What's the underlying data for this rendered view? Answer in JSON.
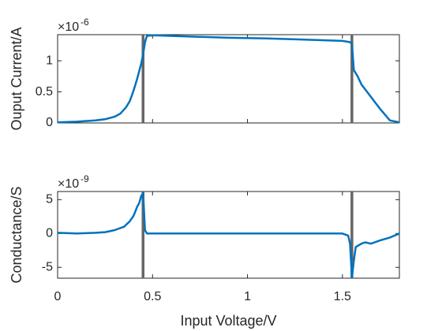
{
  "chart_data": [
    {
      "type": "line",
      "ylabel": "Ouput Current/A",
      "y_multiplier": {
        "base": "×10",
        "exponent": "-6"
      },
      "x": [
        0,
        0.1,
        0.2,
        0.25,
        0.3,
        0.33,
        0.36,
        0.38,
        0.4,
        0.42,
        0.44,
        0.45,
        0.46,
        0.47,
        0.5,
        0.7,
        0.9,
        1.1,
        1.3,
        1.5,
        1.54,
        1.55,
        1.56,
        1.58,
        1.6,
        1.65,
        1.7,
        1.75,
        1.8
      ],
      "values": [
        0.01,
        0.02,
        0.04,
        0.06,
        0.1,
        0.15,
        0.25,
        0.35,
        0.52,
        0.72,
        0.95,
        1.1,
        1.3,
        1.4,
        1.41,
        1.39,
        1.37,
        1.36,
        1.34,
        1.32,
        1.3,
        1.27,
        0.85,
        0.75,
        0.62,
        0.42,
        0.22,
        0.04,
        0.01
      ],
      "color": "#0072bd",
      "vlines": [
        0.45,
        1.55
      ],
      "vline_color": "#666666",
      "xlim": [
        0,
        1.8
      ],
      "xticks": [
        0,
        0.5,
        1,
        1.5
      ],
      "xticklabels": false,
      "ylim": [
        0,
        1.42
      ],
      "yticks": [
        0,
        0.5,
        1
      ]
    },
    {
      "type": "line",
      "ylabel": "Conductance/S",
      "xlabel": "Input Voltage/V",
      "y_multiplier": {
        "base": "×10",
        "exponent": "-9"
      },
      "x": [
        0,
        0.1,
        0.2,
        0.25,
        0.3,
        0.35,
        0.38,
        0.4,
        0.42,
        0.43,
        0.44,
        0.45,
        0.46,
        0.47,
        0.5,
        1.0,
        1.5,
        1.53,
        1.54,
        1.55,
        1.56,
        1.57,
        1.6,
        1.62,
        1.65,
        1.7,
        1.75,
        1.8
      ],
      "values": [
        0.1,
        0,
        0.1,
        0.2,
        0.5,
        1.0,
        1.8,
        2.6,
        4.0,
        4.5,
        5.5,
        6.0,
        0.5,
        0,
        0,
        0,
        0,
        -0.3,
        -1.5,
        -6.5,
        -4,
        -2,
        -1.5,
        -1.3,
        -1.5,
        -1.0,
        -0.6,
        0
      ],
      "color": "#0072bd",
      "vlines": [
        0.45,
        1.55
      ],
      "vline_color": "#666666",
      "xlim": [
        0,
        1.8
      ],
      "xticks": [
        0,
        0.5,
        1,
        1.5
      ],
      "xticklabels": true,
      "ylim": [
        -6.6,
        6.2
      ],
      "yticks": [
        -5,
        0,
        5
      ]
    }
  ]
}
